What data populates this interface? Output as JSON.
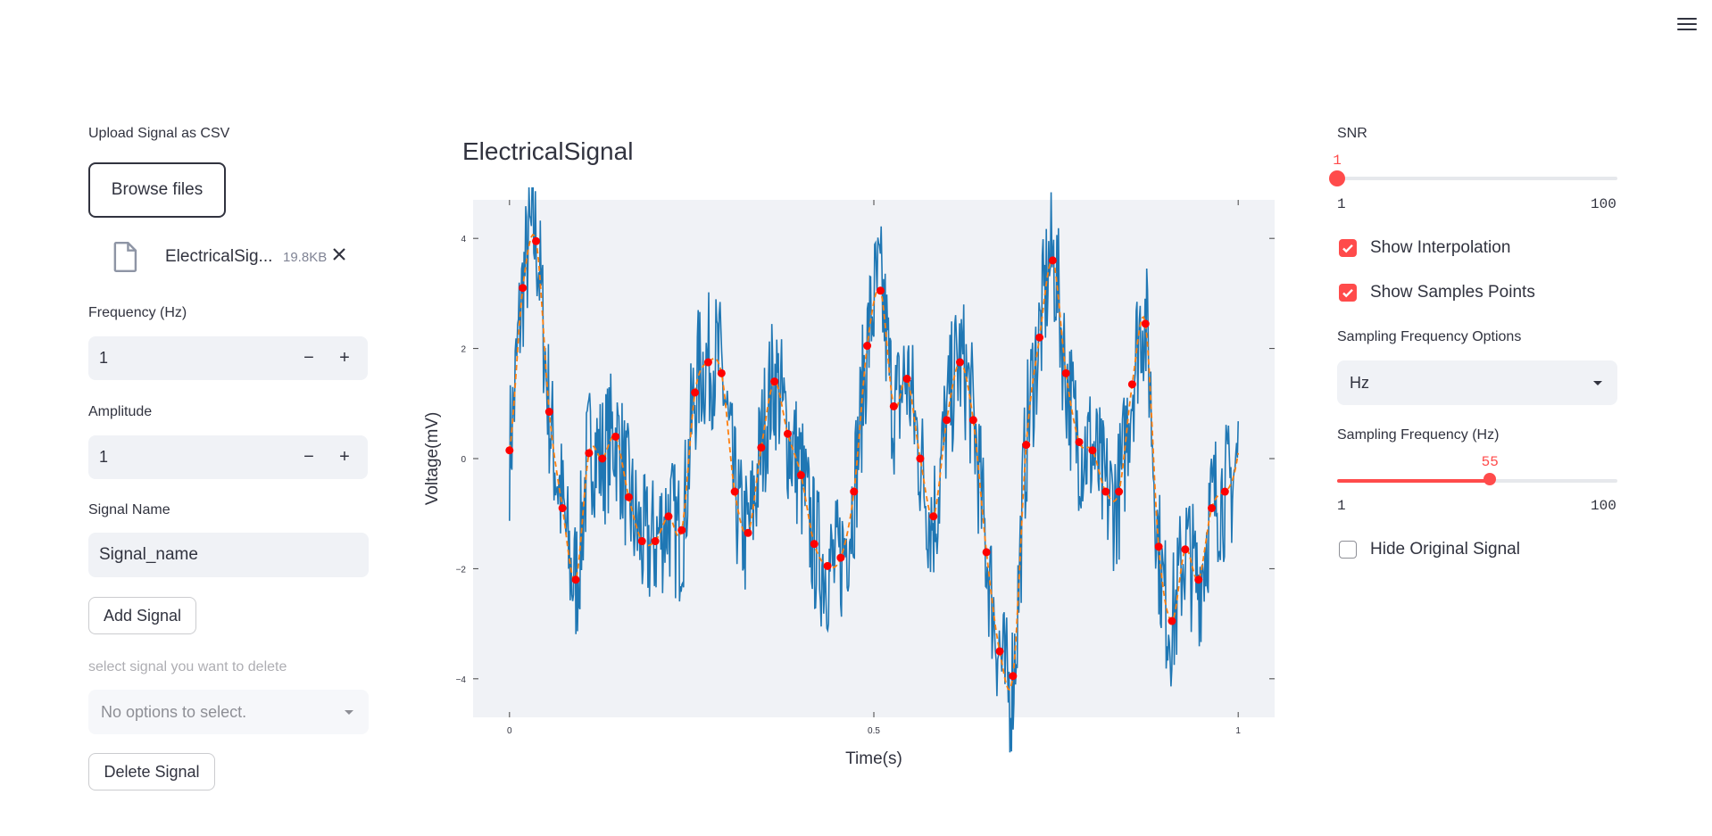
{
  "sidebar": {
    "upload_label": "Upload Signal as CSV",
    "browse_label": "Browse files",
    "file": {
      "name": "ElectricalSig...",
      "size": "19.8KB"
    },
    "frequency": {
      "label": "Frequency (Hz)",
      "value": "1"
    },
    "amplitude": {
      "label": "Amplitude",
      "value": "1"
    },
    "signal_name": {
      "label": "Signal Name",
      "value": "Signal_name"
    },
    "add_label": "Add Signal",
    "delete_select": {
      "label": "select signal you want to delete",
      "placeholder": "No options to select."
    },
    "delete_label": "Delete Signal",
    "stepper_minus": "−",
    "stepper_plus": "+"
  },
  "main": {
    "title": "ElectricalSignal"
  },
  "controls": {
    "snr": {
      "label": "SNR",
      "value": 1,
      "value_text": "1",
      "min": 1,
      "min_text": "1",
      "max": 100,
      "max_text": "100"
    },
    "show_interpolation": {
      "label": "Show Interpolation",
      "checked": true
    },
    "show_samples": {
      "label": "Show Samples Points",
      "checked": true
    },
    "sampling_options": {
      "label": "Sampling Frequency Options",
      "value": "Hz"
    },
    "sampling_frequency": {
      "label": "Sampling Frequency (Hz)",
      "value": 55,
      "value_text": "55",
      "min": 1,
      "min_text": "1",
      "max": 100,
      "max_text": "100"
    },
    "hide_original": {
      "label": "Hide Original Signal",
      "checked": false
    }
  },
  "colors": {
    "accent": "#ff4b4b",
    "signal": "#1f77b4",
    "interp": "#ff7f0e",
    "samples": "#ff0000",
    "plot_bg": "#f0f2f6"
  },
  "chart_data": {
    "type": "line",
    "xlabel": "Time(s)",
    "ylabel": "Voltage(mV)",
    "xlim": [
      -0.05,
      1.05
    ],
    "ylim": [
      -4.7,
      4.7
    ],
    "xticks": [
      0,
      0.5,
      1
    ],
    "xtick_labels": [
      "0",
      "0.5",
      "1"
    ],
    "yticks": [
      -4,
      -2,
      0,
      2,
      4
    ],
    "ytick_labels": [
      "−4",
      "−2",
      "0",
      "2",
      "4"
    ],
    "series": [
      {
        "style": "line",
        "noise": 0.8,
        "color": "#1f77b4"
      },
      {
        "style": "dashed",
        "color": "#ff7f0e"
      },
      {
        "style": "markers",
        "color": "#ff0000",
        "sample_rate": 55
      }
    ],
    "samples": {
      "x": [
        0,
        0.0182,
        0.0364,
        0.0545,
        0.0727,
        0.0909,
        0.1091,
        0.1273,
        0.1455,
        0.1636,
        0.1818,
        0.2,
        0.2182,
        0.2364,
        0.2545,
        0.2727,
        0.2909,
        0.3091,
        0.3273,
        0.3455,
        0.3636,
        0.3818,
        0.4,
        0.4182,
        0.4364,
        0.4545,
        0.4727,
        0.4909,
        0.5091,
        0.5273,
        0.5455,
        0.5636,
        0.5818,
        0.6,
        0.6182,
        0.6364,
        0.6545,
        0.6727,
        0.6909,
        0.7091,
        0.7273,
        0.7455,
        0.7636,
        0.7818,
        0.8,
        0.8182,
        0.8364,
        0.8545,
        0.8727,
        0.8909,
        0.9091,
        0.9273,
        0.9455,
        0.9636,
        0.9818
      ],
      "y": [
        0.15,
        3.1,
        3.95,
        0.85,
        -0.9,
        -2.2,
        0.1,
        0,
        0.4,
        -0.7,
        -1.5,
        -1.5,
        -1.05,
        -1.3,
        1.2,
        1.75,
        1.55,
        -0.6,
        -1.35,
        0.2,
        1.4,
        0.45,
        -0.3,
        -1.55,
        -1.95,
        -1.8,
        -0.6,
        2.05,
        3.05,
        0.95,
        1.45,
        0,
        -1.05,
        0.7,
        1.75,
        0.7,
        -1.7,
        -3.5,
        -3.95,
        0.25,
        2.2,
        3.6,
        1.55,
        0.3,
        0.15,
        -0.6,
        -0.6,
        1.35,
        2.45,
        -1.6,
        -2.95,
        -1.65,
        -2.2,
        -0.9,
        -0.6
      ]
    }
  }
}
